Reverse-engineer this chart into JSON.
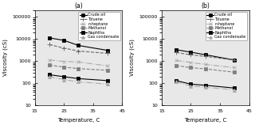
{
  "panel_a": {
    "title": "(a)",
    "series": [
      {
        "name": "Crude oil",
        "x": [
          20,
          25,
          30,
          40
        ],
        "y": [
          11000,
          8500,
          5000,
          3000
        ],
        "marker": "s",
        "ls": "-",
        "color": "black",
        "ms": 3,
        "lw": 0.8,
        "mfc": "black"
      },
      {
        "name": "Toluene",
        "x": [
          20,
          25,
          30,
          40
        ],
        "y": [
          5500,
          3800,
          2800,
          2200
        ],
        "marker": "+",
        "ls": "--",
        "color": "dimgray",
        "ms": 4,
        "lw": 0.8,
        "mfc": "none"
      },
      {
        "name": "n-heptane",
        "x": [
          20,
          25,
          30,
          40
        ],
        "y": [
          1100,
          950,
          900,
          600
        ],
        "marker": "x",
        "ls": "-.",
        "color": "darkgray",
        "ms": 3,
        "lw": 0.8,
        "mfc": "none"
      },
      {
        "name": "Methanol",
        "x": [
          20,
          25,
          30,
          40
        ],
        "y": [
          650,
          530,
          450,
          380
        ],
        "marker": "s",
        "ls": "--",
        "color": "gray",
        "ms": 3,
        "lw": 0.8,
        "mfc": "gray"
      },
      {
        "name": "Naphtha",
        "x": [
          20,
          25,
          30,
          40
        ],
        "y": [
          240,
          195,
          160,
          130
        ],
        "marker": "s",
        "ls": "-",
        "color": "black",
        "ms": 3,
        "lw": 0.8,
        "mfc": "black"
      },
      {
        "name": "Gas condensate",
        "x": [
          20,
          25,
          30,
          40
        ],
        "y": [
          195,
          145,
          115,
          90
        ],
        "marker": "^",
        "ls": "-.",
        "color": "darkgray",
        "ms": 3,
        "lw": 0.8,
        "mfc": "darkgray"
      }
    ],
    "xlabel": "Temperature, C",
    "ylabel": "Viscosity (cS)",
    "xlim": [
      15,
      45
    ],
    "ylim": [
      10,
      200000
    ],
    "xticks": [
      15,
      25,
      35,
      45
    ]
  },
  "panel_b": {
    "title": "(b)",
    "series": [
      {
        "name": "Crude oil",
        "x": [
          20,
          25,
          30,
          40
        ],
        "y": [
          3200,
          2500,
          1900,
          1100
        ],
        "marker": "s",
        "ls": "-",
        "color": "black",
        "ms": 3,
        "lw": 0.8,
        "mfc": "black"
      },
      {
        "name": "Toluene",
        "x": [
          20,
          25,
          30,
          40
        ],
        "y": [
          2400,
          1900,
          1600,
          1100
        ],
        "marker": "+",
        "ls": "--",
        "color": "dimgray",
        "ms": 4,
        "lw": 0.8,
        "mfc": "none"
      },
      {
        "name": "n-heptane",
        "x": [
          20,
          25,
          30,
          40
        ],
        "y": [
          1050,
          850,
          700,
          500
        ],
        "marker": "x",
        "ls": "-.",
        "color": "darkgray",
        "ms": 3,
        "lw": 0.8,
        "mfc": "none"
      },
      {
        "name": "Methanol",
        "x": [
          20,
          25,
          30,
          40
        ],
        "y": [
          620,
          500,
          440,
          310
        ],
        "marker": "s",
        "ls": "--",
        "color": "gray",
        "ms": 3,
        "lw": 0.8,
        "mfc": "gray"
      },
      {
        "name": "Naphtha",
        "x": [
          20,
          25,
          30,
          40
        ],
        "y": [
          130,
          90,
          80,
          60
        ],
        "marker": "s",
        "ls": "-",
        "color": "black",
        "ms": 3,
        "lw": 0.8,
        "mfc": "black"
      },
      {
        "name": "Gas condensate",
        "x": [
          20,
          25,
          30,
          40
        ],
        "y": [
          115,
          75,
          65,
          50
        ],
        "marker": "^",
        "ls": "-.",
        "color": "darkgray",
        "ms": 3,
        "lw": 0.8,
        "mfc": "darkgray"
      }
    ],
    "xlabel": "Temperature, C",
    "ylabel": "Viscosity (cS)",
    "xlim": [
      15,
      45
    ],
    "ylim": [
      10,
      200000
    ],
    "xticks": [
      15,
      25,
      35,
      45
    ]
  },
  "bg_color": "#e8e8e8",
  "fig_color": "#ffffff",
  "legend_fontsize": 3.5,
  "tick_fontsize": 4.5,
  "label_fontsize": 5.0,
  "title_fontsize": 5.5
}
